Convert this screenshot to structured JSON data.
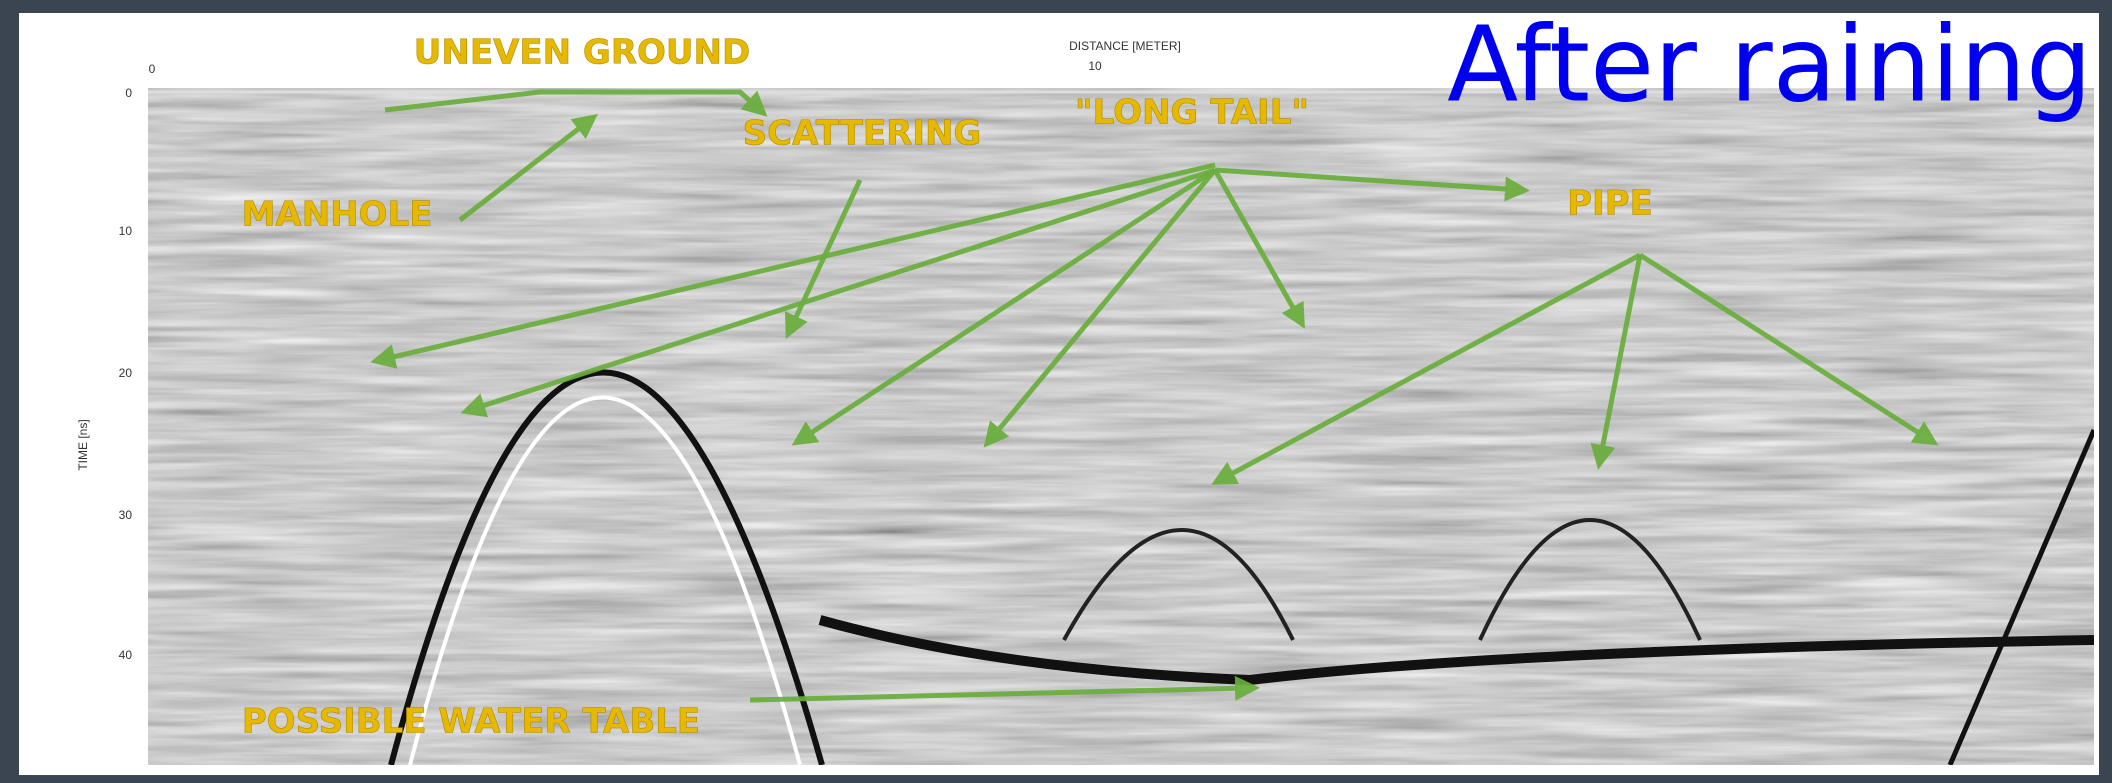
{
  "title": "After raining",
  "axes": {
    "x_title": "DISTANCE [METER]",
    "x_ticks": [
      "0",
      "10"
    ],
    "y_title": "TIME [ns]",
    "y_ticks": [
      "0",
      "10",
      "20",
      "30",
      "40"
    ]
  },
  "annotations": {
    "uneven_ground": "UNEVEN GROUND",
    "scattering": "SCATTERING",
    "long_tail": "\"LONG TAIL\"",
    "manhole": "MANHOLE",
    "pipe": "PIPE",
    "water_table": "POSSIBLE WATER TABLE"
  }
}
